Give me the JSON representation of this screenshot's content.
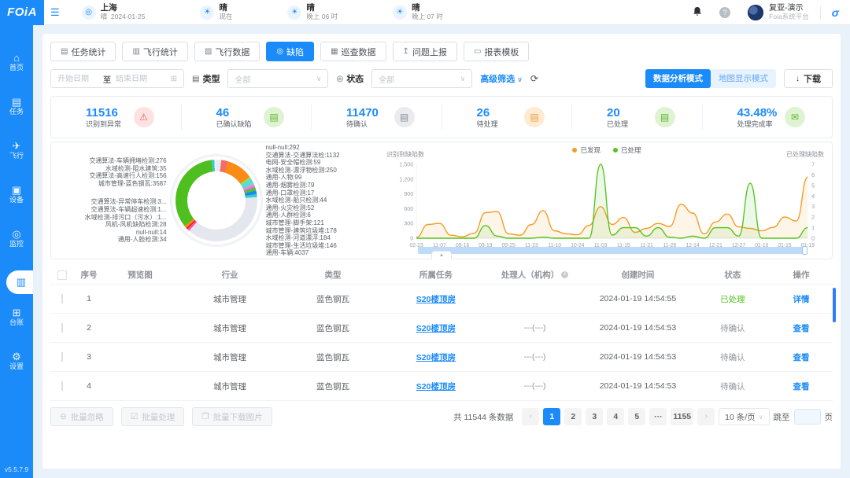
{
  "brand": {
    "logo": "FOiA",
    "version": "v5.5.7.9",
    "accent": "#1b8bfa"
  },
  "header": {
    "menu_icon": "collapse-menu",
    "location": {
      "city": "上海",
      "weather": "晴",
      "date": "2024-01-25"
    },
    "forecast": [
      {
        "cond": "晴",
        "time": "现在"
      },
      {
        "cond": "晴",
        "time": "晚上 06 时"
      },
      {
        "cond": "晴",
        "time": "晚上 07 时"
      }
    ],
    "user": {
      "name": "复亚-演示",
      "org": "Foia系统平台"
    }
  },
  "sidebar": {
    "items": [
      {
        "label": "首页",
        "icon": "home-icon",
        "glyph": "⌂",
        "active": false
      },
      {
        "label": "任务",
        "icon": "task-icon",
        "glyph": "▤",
        "active": false
      },
      {
        "label": "飞行",
        "icon": "flight-icon",
        "glyph": "✈",
        "active": false
      },
      {
        "label": "设备",
        "icon": "device-icon",
        "glyph": "▣",
        "active": false
      },
      {
        "label": "监控",
        "icon": "monitor-icon",
        "glyph": "◎",
        "active": false
      },
      {
        "label": "",
        "icon": "data-icon",
        "glyph": "▥",
        "active": true
      },
      {
        "label": "台账",
        "icon": "ledger-icon",
        "glyph": "⊞",
        "active": false
      },
      {
        "label": "设置",
        "icon": "settings-icon",
        "glyph": "⚙",
        "active": false
      }
    ]
  },
  "tabs": [
    {
      "label": "任务统计",
      "glyph": "▤",
      "active": false
    },
    {
      "label": "飞行统计",
      "glyph": "▥",
      "active": false
    },
    {
      "label": "飞行数据",
      "glyph": "▧",
      "active": false
    },
    {
      "label": "缺陷",
      "glyph": "◎",
      "active": true
    },
    {
      "label": "巡查数据",
      "glyph": "▦",
      "active": false
    },
    {
      "label": "问题上报",
      "glyph": "↥",
      "active": false
    },
    {
      "label": "报表模板",
      "glyph": "▭",
      "active": false
    }
  ],
  "filters": {
    "start_placeholder": "开始日期",
    "to": "至",
    "end_placeholder": "结束日期",
    "type_label": "类型",
    "type_value": "全部",
    "status_label": "状态",
    "status_value": "全部",
    "advanced": "高级筛选"
  },
  "modes": {
    "analysis": "数据分析模式",
    "map": "地图显示模式",
    "download": "下载"
  },
  "stats": [
    {
      "value": "11516",
      "label": "识别到异常",
      "glyph": "⚠",
      "fg": "#f05b5b",
      "bg": "#fde2e2"
    },
    {
      "value": "46",
      "label": "已确认缺陷",
      "glyph": "▤",
      "fg": "#5cb633",
      "bg": "#dff3d2"
    },
    {
      "value": "11470",
      "label": "待确认",
      "glyph": "▤",
      "fg": "#8b9099",
      "bg": "#e9ebee"
    },
    {
      "value": "26",
      "label": "待处理",
      "glyph": "▤",
      "fg": "#ef9f41",
      "bg": "#fdebd4"
    },
    {
      "value": "20",
      "label": "已处理",
      "glyph": "▤",
      "fg": "#5cb633",
      "bg": "#dff3d2"
    },
    {
      "value": "43.48%",
      "label": "处理完成率",
      "glyph": "✉",
      "fg": "#5cb633",
      "bg": "#dff3d2"
    }
  ],
  "chart_data": [
    {
      "type": "pie",
      "name": "defect-category-donut",
      "labels_left": [
        "交通算法-车辆拥堵检测:276",
        "水域检测-阻水建筑:35",
        "交通算法-高速行人检测:156",
        "城市管理-蓝色钢瓦:3587",
        "交通算法-异常停车检测:3...",
        "交通算法-车辆超速检测:1...",
        "水域检测-排污口（污水）:1...",
        "风机-风机缺陷检测:28",
        "null-null:14",
        "通用-人脸检测:34"
      ],
      "labels_right": [
        "null-null:292",
        "交通算法-交通算法检:1132",
        "电网-安全帽检测:59",
        "水域检测-漂浮物检测:250",
        "通用-人物:99",
        "通用-烟雾检测:79",
        "通用-口罩检测:17",
        "水域检测-船只检测:44",
        "通用-火灾检测:52",
        "通用-人群检测:6",
        "城市管理-脚手架:121",
        "城市管理-建筑垃圾堆:178",
        "水域检测-河道漂浮:184",
        "城市管理-生活垃圾堆:146",
        "通用-车辆:4037"
      ],
      "segments": [
        {
          "color": "#e8ebf0",
          "value": 200
        },
        {
          "color": "#f56c6c",
          "value": 280
        },
        {
          "color": "#fa8c16",
          "value": 1132
        },
        {
          "color": "#95de64",
          "value": 90
        },
        {
          "color": "#5cdbd3",
          "value": 250
        },
        {
          "color": "#ff85c0",
          "value": 90
        },
        {
          "color": "#b37feb",
          "value": 80
        },
        {
          "color": "#52c41a",
          "value": 120
        },
        {
          "color": "#1989fa",
          "value": 140
        },
        {
          "color": "#36cfc9",
          "value": 130
        },
        {
          "color": "#e4e7ed",
          "value": 4037
        },
        {
          "color": "#f759ab",
          "value": 90
        },
        {
          "color": "#f5222d",
          "value": 80
        },
        {
          "color": "#fa8c16",
          "value": 100
        },
        {
          "color": "#4ebf1f",
          "value": 3587
        },
        {
          "color": "#36cfc9",
          "value": 120
        },
        {
          "color": "#eef0f4",
          "value": 90
        }
      ]
    },
    {
      "type": "line",
      "name": "defect-trend",
      "left_axis": {
        "title": "识别到缺陷数",
        "ticks": [
          "1,500",
          "1,200",
          "900",
          "600",
          "300",
          "0"
        ],
        "max": 1500
      },
      "right_axis": {
        "title": "已处理缺陷数",
        "ticks": [
          "7",
          "6",
          "5",
          "4",
          "3",
          "2",
          "1",
          "0"
        ],
        "max": 7
      },
      "x_ticks": [
        "02-23",
        "11-07",
        "09-16",
        "09-19",
        "09-25",
        "11-23",
        "11-10",
        "10-24",
        "11-03",
        "11-15",
        "11-21",
        "11-28",
        "12-14",
        "12-21",
        "12-27",
        "01-10",
        "01-15",
        "01-19"
      ],
      "series": [
        {
          "name": "已发现",
          "color": "#f59a23",
          "axis": "left",
          "values": [
            20,
            280,
            300,
            60,
            30,
            100,
            520,
            540,
            90,
            60,
            280,
            560,
            150,
            90,
            70,
            260,
            640,
            280,
            420,
            120,
            200,
            300,
            240,
            690,
            510,
            90,
            330,
            490,
            230,
            200,
            150,
            220,
            430,
            350,
            1240
          ]
        },
        {
          "name": "已处理",
          "color": "#52c41a",
          "axis": "right",
          "values": [
            0,
            0,
            0,
            0,
            0,
            0,
            1.2,
            0.2,
            0,
            0,
            0,
            0.1,
            0,
            0,
            0,
            0,
            7,
            0.3,
            1,
            1,
            0.2,
            1,
            0.1,
            0,
            0.2,
            0,
            1,
            1,
            0.2,
            5.2,
            0,
            0,
            0,
            0,
            1
          ]
        }
      ]
    }
  ],
  "table": {
    "columns": [
      "序号",
      "预览图",
      "行业",
      "类型",
      "所属任务",
      "处理人（机构）",
      "创建时间",
      "状态",
      "操作"
    ],
    "rows": [
      {
        "no": "1",
        "industry": "城市管理",
        "type": "蓝色钢瓦",
        "task": "S20楼顶房",
        "handler": "",
        "handler_blurred": true,
        "time": "2024-01-19 14:54:55",
        "status": "已处理",
        "status_color": "#52c41a",
        "action": "详情"
      },
      {
        "no": "2",
        "industry": "城市管理",
        "type": "蓝色钢瓦",
        "task": "S20楼顶房",
        "handler": "---(---)",
        "handler_blurred": false,
        "time": "2024-01-19 14:54:53",
        "status": "待确认",
        "status_color": "#909399",
        "action": "查看"
      },
      {
        "no": "3",
        "industry": "城市管理",
        "type": "蓝色钢瓦",
        "task": "S20楼顶房",
        "handler": "---(---)",
        "handler_blurred": false,
        "time": "2024-01-19 14:54:53",
        "status": "待确认",
        "status_color": "#909399",
        "action": "查看"
      },
      {
        "no": "4",
        "industry": "城市管理",
        "type": "蓝色钢瓦",
        "task": "S20楼顶房",
        "handler": "---(---)",
        "handler_blurred": false,
        "time": "2024-01-19 14:54:53",
        "status": "待确认",
        "status_color": "#909399",
        "action": "查看"
      }
    ]
  },
  "batch_actions": [
    {
      "label": "批量忽略",
      "glyph": "⊖"
    },
    {
      "label": "批量处理",
      "glyph": "☑"
    },
    {
      "label": "批量下载图片",
      "glyph": "❐"
    }
  ],
  "pagination": {
    "total": "共 11544 条数据",
    "pages": [
      "1",
      "2",
      "3",
      "4",
      "5",
      "···",
      "1155"
    ],
    "active": "1",
    "per_page": "10 条/页",
    "jump_prefix": "跳至",
    "jump_suffix": "页"
  }
}
